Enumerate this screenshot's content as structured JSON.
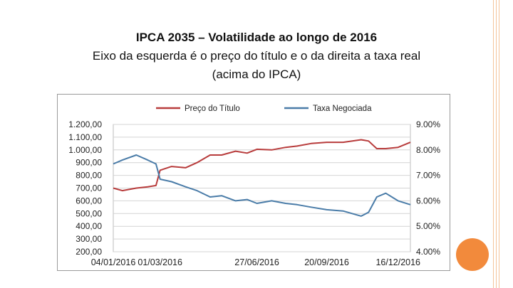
{
  "slide": {
    "title": "IPCA 2035 – Volatilidade ao longo de 2016",
    "subtitle_line1": "Eixo da esquerda é o preço do título e o da direita a taxa real",
    "subtitle_line2": "(acima do IPCA)"
  },
  "colors": {
    "accent": "#f28a3c",
    "border": "#f4c49a"
  },
  "chart_data": {
    "type": "line",
    "legend_position": "top",
    "grid": true,
    "x_ticks": [
      "04/01/2016",
      "01/03/2016",
      "27/06/2016",
      "20/09/2016",
      "16/12/2016"
    ],
    "x_range": [
      "04/01/2016",
      "31/12/2016"
    ],
    "y_left": {
      "range": [
        200,
        1200
      ],
      "ticks": [
        "200,00",
        "300,00",
        "400,00",
        "500,00",
        "600,00",
        "700,00",
        "800,00",
        "900,00",
        "1.000,00",
        "1.100,00",
        "1.200,00"
      ]
    },
    "y_right": {
      "range": [
        4,
        9
      ],
      "ticks": [
        "4.00%",
        "5.00%",
        "6.00%",
        "7.00%",
        "8.00%",
        "9.00%"
      ]
    },
    "series": [
      {
        "name": "Preço do Título",
        "axis": "left",
        "color": "#b83c3c",
        "x": [
          "04/01/2016",
          "15/01/2016",
          "01/02/2016",
          "15/02/2016",
          "25/02/2016",
          "01/03/2016",
          "15/03/2016",
          "01/04/2016",
          "15/04/2016",
          "01/05/2016",
          "15/05/2016",
          "01/06/2016",
          "15/06/2016",
          "27/06/2016",
          "15/07/2016",
          "01/08/2016",
          "15/08/2016",
          "01/09/2016",
          "20/09/2016",
          "10/10/2016",
          "01/11/2016",
          "10/11/2016",
          "20/11/2016",
          "01/12/2016",
          "16/12/2016",
          "31/12/2016"
        ],
        "y": [
          700,
          680,
          700,
          710,
          720,
          840,
          870,
          860,
          900,
          960,
          960,
          990,
          975,
          1005,
          1000,
          1020,
          1030,
          1050,
          1060,
          1060,
          1080,
          1070,
          1010,
          1010,
          1020,
          1060
        ]
      },
      {
        "name": "Taxa Negociada",
        "axis": "right",
        "color": "#4a7ca8",
        "x": [
          "04/01/2016",
          "15/01/2016",
          "01/02/2016",
          "15/02/2016",
          "25/02/2016",
          "01/03/2016",
          "15/03/2016",
          "01/04/2016",
          "15/04/2016",
          "01/05/2016",
          "15/05/2016",
          "01/06/2016",
          "15/06/2016",
          "27/06/2016",
          "15/07/2016",
          "01/08/2016",
          "15/08/2016",
          "01/09/2016",
          "20/09/2016",
          "10/10/2016",
          "01/11/2016",
          "10/11/2016",
          "20/11/2016",
          "01/12/2016",
          "16/12/2016",
          "31/12/2016"
        ],
        "y": [
          7.45,
          7.6,
          7.8,
          7.6,
          7.45,
          6.85,
          6.75,
          6.55,
          6.4,
          6.15,
          6.2,
          6.0,
          6.05,
          5.9,
          6.0,
          5.9,
          5.85,
          5.75,
          5.65,
          5.6,
          5.4,
          5.55,
          6.15,
          6.3,
          6.0,
          5.85
        ]
      }
    ]
  }
}
